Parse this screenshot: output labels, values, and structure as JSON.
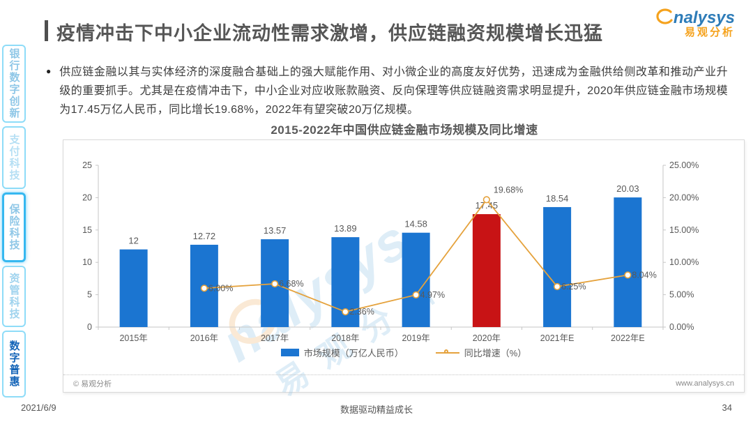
{
  "page": {
    "title": "疫情冲击下中小企业流动性需求激增，供应链融资规模增长迅猛",
    "date": "2021/6/9",
    "slogan": "数据驱动精益成长",
    "page_number": "34"
  },
  "logo": {
    "text_en": "nalysys",
    "text_cn": "易观分析"
  },
  "sidebar": {
    "items": [
      {
        "label": "银行数字创新",
        "active": false
      },
      {
        "label": "支付科技",
        "active": false
      },
      {
        "label": "保险科技",
        "active": true
      },
      {
        "label": "资管科技",
        "active": false
      },
      {
        "label": "数字普惠",
        "active": false
      }
    ]
  },
  "body": {
    "bullet": "●",
    "text": "供应链金融以其与实体经济的深度融合基础上的强大赋能作用、对小微企业的高度友好优势，迅速成为金融供给侧改革和推动产业升级的重要抓手。尤其是在疫情冲击下，中小企业对应收账款融资、反向保理等供应链融资需求明显提升，2020年供应链金融市场规模为17.45万亿人民币，同比增长19.68%，2022年有望突破20万亿规模。"
  },
  "chart_data": {
    "type": "bar+line",
    "title": "2015-2022年中国供应链金融市场规模及同比增速",
    "categories": [
      "2015年",
      "2016年",
      "2017年",
      "2018年",
      "2019年",
      "2020年",
      "2021年E",
      "2022年E"
    ],
    "series": [
      {
        "name": "市场规模（万亿人民币）",
        "type": "bar",
        "axis": "left",
        "values": [
          12,
          12.72,
          13.57,
          13.89,
          14.58,
          17.45,
          18.54,
          20.03
        ],
        "value_labels": [
          "12",
          "12.72",
          "13.57",
          "13.89",
          "14.58",
          "17.45",
          "18.54",
          "20.03"
        ]
      },
      {
        "name": "同比增速（%）",
        "type": "line",
        "axis": "right",
        "values": [
          null,
          6.0,
          6.68,
          2.36,
          4.97,
          19.68,
          6.25,
          8.04
        ],
        "value_labels": [
          null,
          "6.00%",
          "6.68%",
          "2.36%",
          "4.97%",
          "19.68%",
          "6.25%",
          "8.04%"
        ]
      }
    ],
    "left_axis": {
      "min": 0,
      "max": 25,
      "tick_values": [
        0,
        5,
        10,
        15,
        20,
        25
      ],
      "tick_labels": [
        "0",
        "5",
        "10",
        "15",
        "20",
        "25"
      ]
    },
    "right_axis": {
      "min": 0,
      "max": 25,
      "tick_values": [
        0,
        5,
        10,
        15,
        20,
        25
      ],
      "tick_labels": [
        "0.00%",
        "5.00%",
        "10.00%",
        "15.00%",
        "20.00%",
        "25.00%"
      ]
    },
    "highlight_index": 5,
    "colors": {
      "bar": "#1B75D1",
      "bar_highlight": "#C81315",
      "line": "#E5A23C",
      "axis": "#C6C6C6",
      "label": "#595959"
    },
    "legend_position": "bottom",
    "grid": false
  },
  "card_footer": {
    "copyright": "© 易观分析",
    "website": "www.analysys.cn"
  },
  "watermark": {
    "text_en": "nalysys",
    "text_cn": "易观分析"
  },
  "colors": {
    "brand_blue": "#2E7CB8",
    "brand_orange": "#F5A21D",
    "sidebar_accent": "#36B8F0",
    "title_gray": "#565656"
  }
}
